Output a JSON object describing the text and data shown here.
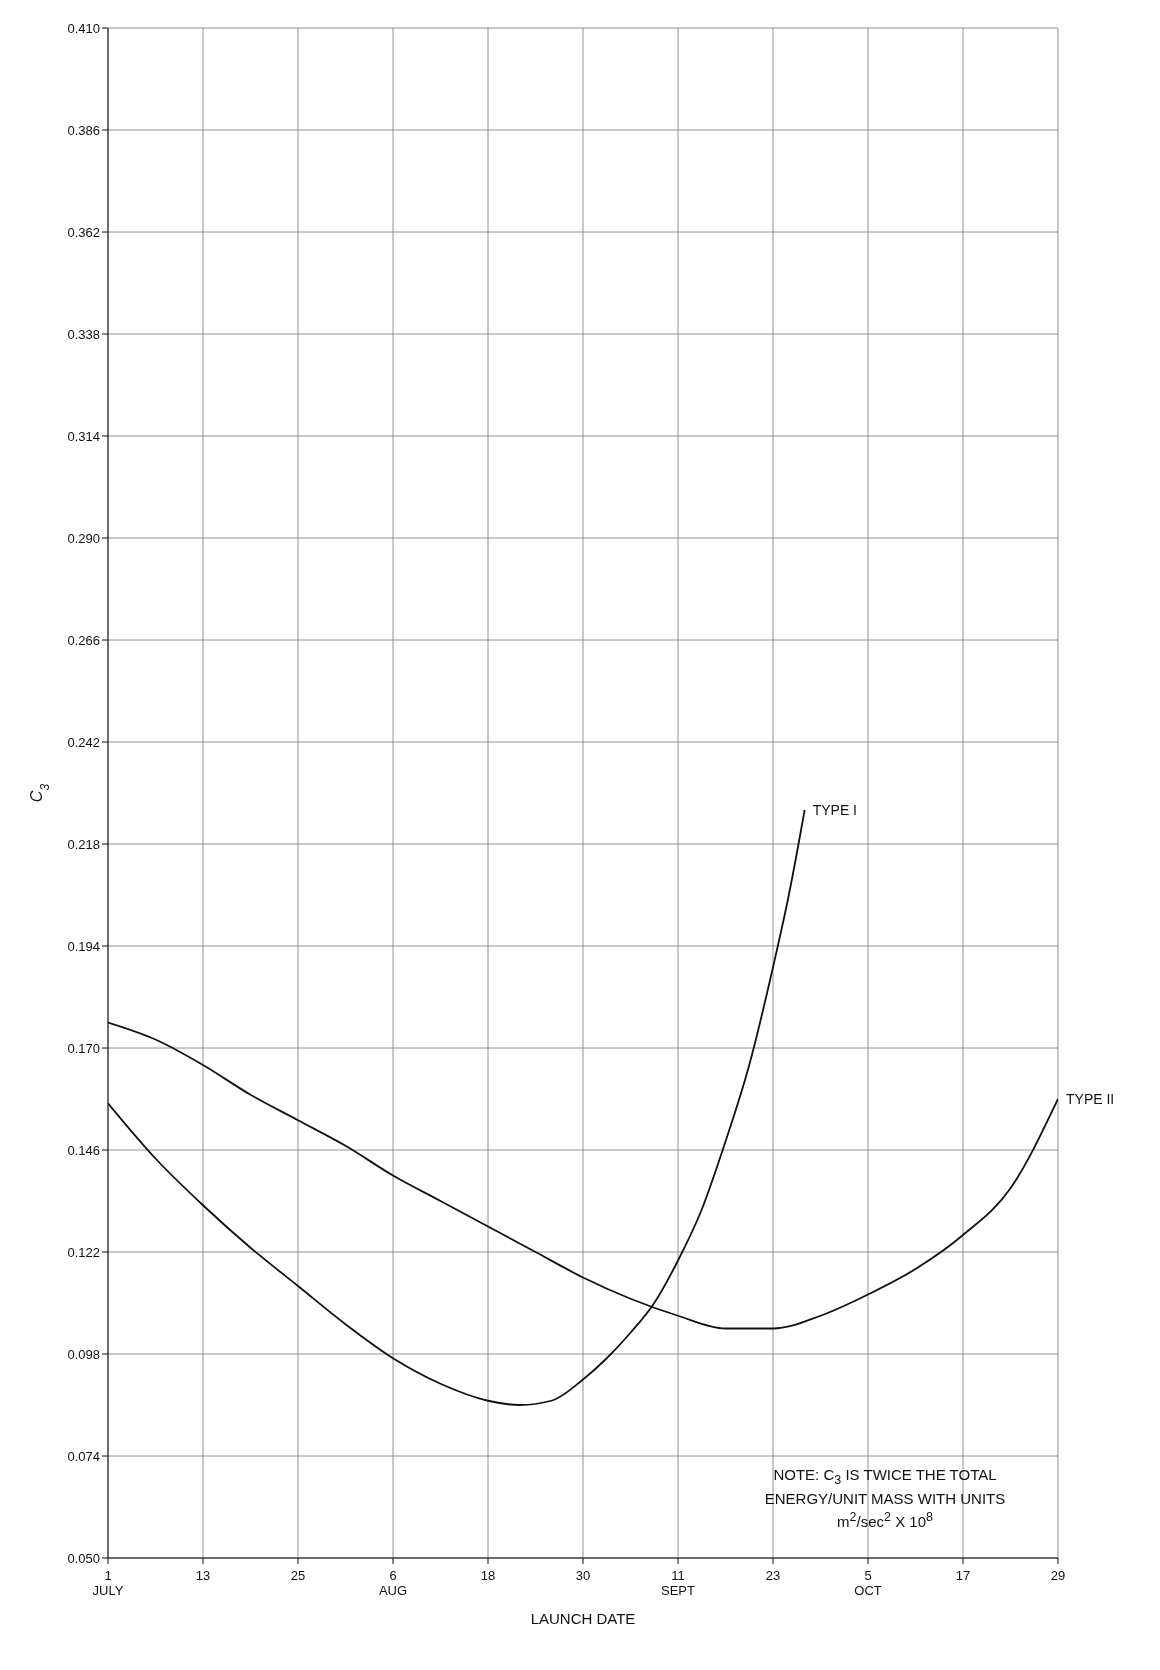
{
  "chart_data": {
    "type": "line",
    "xlabel": "LAUNCH DATE",
    "ylabel": "C$_{3}$",
    "annotations": [
      "NOTE: C$_{3}$ IS TWICE THE TOTAL ENERGY/UNIT MASS WITH UNITS m$^{2}$/sec$^{2}$ X 10$^{8}$"
    ],
    "xlim": [
      "--07-01",
      "--10-29"
    ],
    "xticks": [
      {
        "value": "--07-01",
        "label": "1\nJULY"
      },
      {
        "value": "--07-13",
        "label": "13"
      },
      {
        "value": "--07-25",
        "label": "25"
      },
      {
        "value": "--08-06",
        "label": "6\nAUG"
      },
      {
        "value": "--08-18",
        "label": "18"
      },
      {
        "value": "--08-30",
        "label": "30"
      },
      {
        "value": "--09-11",
        "label": "11\nSEPT"
      },
      {
        "value": "--09-23",
        "label": "23"
      },
      {
        "value": "--10-05",
        "label": "5\nOCT"
      },
      {
        "value": "--10-17",
        "label": "17"
      },
      {
        "value": "--10-29",
        "label": "29"
      }
    ],
    "ylim": [
      0.05,
      0.41
    ],
    "yticks": [
      {
        "value": 0.05,
        "label": "0.050"
      },
      0.074,
      0.098,
      0.122,
      0.146,
      {
        "value": 0.17,
        "label": "0.170"
      },
      0.194,
      0.218,
      0.242,
      0.266,
      {
        "value": 0.29,
        "label": "0.290"
      },
      0.314,
      0.338,
      0.362,
      0.386,
      {
        "value": 0.41,
        "label": "0.410"
      }
    ],
    "grid": true,
    "marker": "none",
    "line_style": "solid",
    "series": [
      {
        "name": "TYPE I",
        "color": "#111111",
        "x": [
          "--07-01",
          "--07-07",
          "--07-13",
          "--07-19",
          "--07-25",
          "--07-31",
          "--08-06",
          "--08-12",
          "--08-18",
          "--08-22",
          "--08-26",
          "--08-30",
          "--09-02",
          "--09-05",
          "--09-08",
          "--09-11",
          "--09-14",
          "--09-17",
          "--09-20",
          "--09-23",
          "--09-25",
          "--09-27"
        ],
        "values": [
          0.157,
          0.144,
          0.133,
          0.123,
          0.114,
          0.105,
          0.097,
          0.091,
          0.087,
          0.086,
          0.087,
          0.092,
          0.097,
          0.103,
          0.11,
          0.12,
          0.132,
          0.148,
          0.166,
          0.189,
          0.206,
          0.226
        ]
      },
      {
        "name": "TYPE II",
        "color": "#111111",
        "x": [
          "--07-01",
          "--07-07",
          "--07-13",
          "--07-19",
          "--07-25",
          "--07-31",
          "--08-06",
          "--08-12",
          "--08-18",
          "--08-24",
          "--08-30",
          "--09-05",
          "--09-11",
          "--09-17",
          "--09-23",
          "--09-29",
          "--10-05",
          "--10-11",
          "--10-17",
          "--10-23",
          "--10-29"
        ],
        "values": [
          0.176,
          0.172,
          0.166,
          0.159,
          0.153,
          0.147,
          0.14,
          0.134,
          0.128,
          0.122,
          0.116,
          0.111,
          0.107,
          0.104,
          0.104,
          0.107,
          0.112,
          0.118,
          0.126,
          0.137,
          0.158
        ]
      }
    ]
  }
}
